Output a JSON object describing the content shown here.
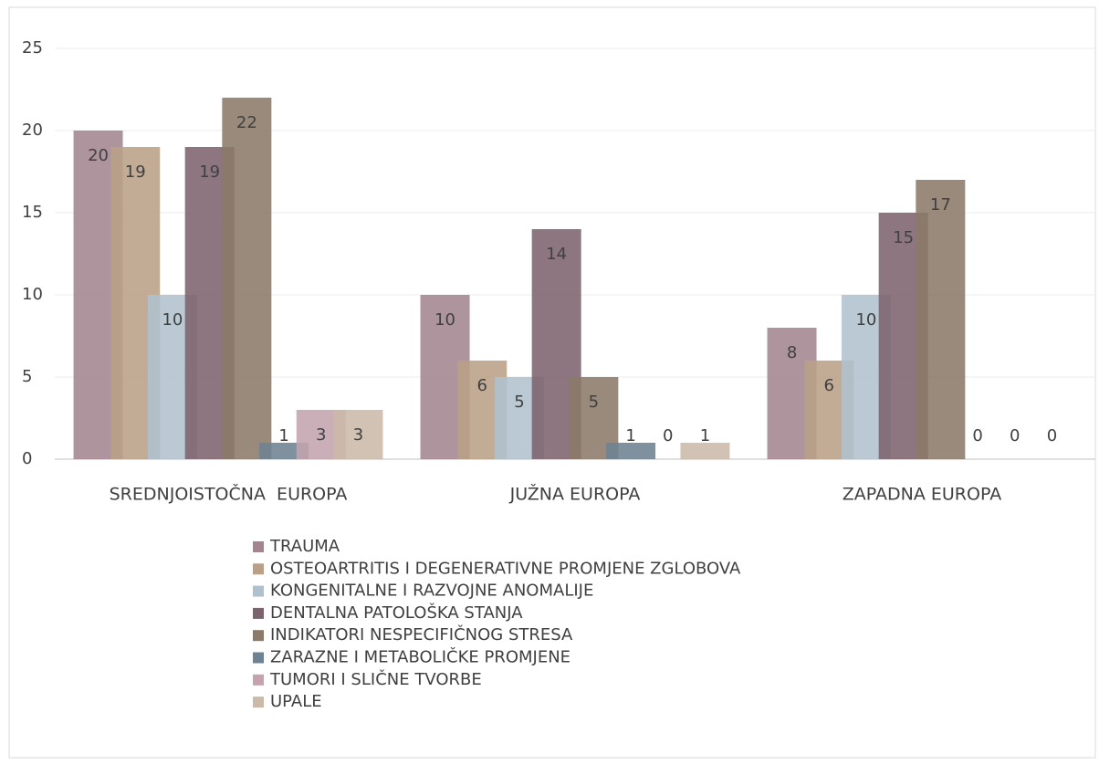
{
  "chart_data": {
    "type": "bar",
    "categories": [
      "SREDNJOISTOČNA  EUROPA",
      "JUŽNA EUROPA",
      "ZAPADNA EUROPA"
    ],
    "series": [
      {
        "name": "TRAUMA",
        "color": "#a3858f",
        "values": [
          20,
          10,
          8
        ]
      },
      {
        "name": "OSTEOARTRITIS I DEGENERATIVNE PROMJENE ZGLOBOVA",
        "color": "#b9a087",
        "values": [
          19,
          6,
          6
        ]
      },
      {
        "name": "KONGENITALNE I RAZVOJNE ANOMALIJE",
        "color": "#b0c1ce",
        "values": [
          10,
          5,
          10
        ]
      },
      {
        "name": "DENTALNA PATOLOŠKA STANJA",
        "color": "#7d636d",
        "values": [
          19,
          14,
          15
        ]
      },
      {
        "name": "INDIKATORI NESPECIFIČNOG STRESA",
        "color": "#8b7a69",
        "values": [
          22,
          5,
          17
        ]
      },
      {
        "name": "ZARAZNE I METABOLIČKE PROMJENE",
        "color": "#6d8292",
        "values": [
          1,
          1,
          0
        ]
      },
      {
        "name": "TUMORI I SLIČNE TVORBE",
        "color": "#c3a4ae",
        "values": [
          3,
          0,
          0
        ]
      },
      {
        "name": "UPALE",
        "color": "#cbbaa8",
        "values": [
          3,
          1,
          0
        ]
      }
    ],
    "ylim": [
      0,
      25
    ],
    "yticks": [
      0,
      5,
      10,
      15,
      20,
      25
    ],
    "grid": true,
    "legend": "bottom"
  }
}
